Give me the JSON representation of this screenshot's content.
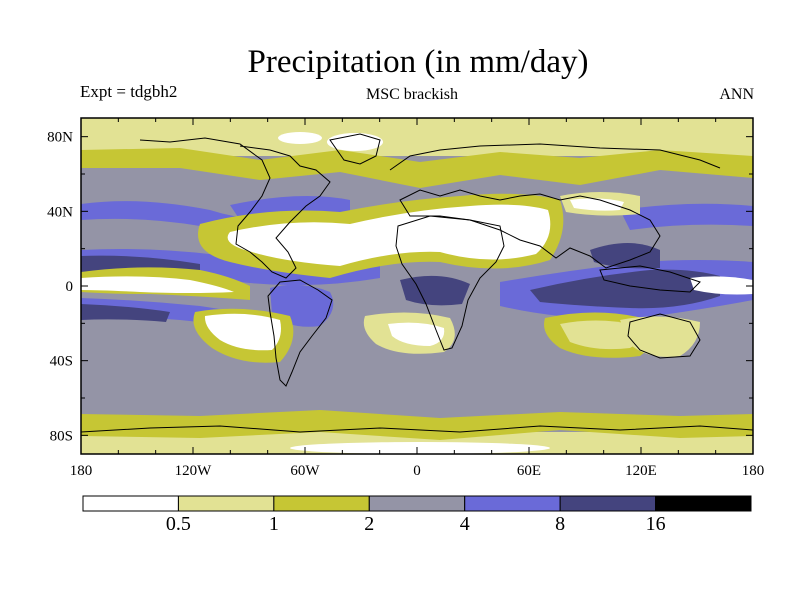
{
  "title": "Precipitation (in mm/day)",
  "left_label": "Expt = tdgbh2",
  "center_label": "MSC brackish",
  "right_label": "ANN",
  "map": {
    "projection": "equirectangular",
    "lon_range": [
      -180,
      180
    ],
    "lat_range": [
      -90,
      90
    ],
    "lat_ticks": [
      {
        "value": 80,
        "label": "80N"
      },
      {
        "value": 40,
        "label": "40N"
      },
      {
        "value": 0,
        "label": "0"
      },
      {
        "value": -40,
        "label": "40S"
      },
      {
        "value": -80,
        "label": "80S"
      }
    ],
    "lon_ticks": [
      {
        "value": -180,
        "label": "180"
      },
      {
        "value": -120,
        "label": "120W"
      },
      {
        "value": -60,
        "label": "60W"
      },
      {
        "value": 0,
        "label": "0"
      },
      {
        "value": 60,
        "label": "60E"
      },
      {
        "value": 120,
        "label": "120E"
      },
      {
        "value": 180,
        "label": "180"
      }
    ]
  },
  "colorbar": {
    "colors": [
      "#ffffff",
      "#e2e294",
      "#c6c634",
      "#9494a6",
      "#6a6ad8",
      "#44447e",
      "#000000"
    ],
    "boundaries": [
      "0.5",
      "1",
      "2",
      "4",
      "8",
      "16"
    ]
  },
  "chart_data": {
    "type": "heatmap",
    "title": "Precipitation (in mm/day)",
    "levels": [
      0.5,
      1,
      2,
      4,
      8,
      16
    ],
    "xlim": [
      -180,
      180
    ],
    "ylim": [
      -90,
      90
    ],
    "categories": [
      "<0.5",
      "0.5-1",
      "1-2",
      "2-4",
      "4-8",
      "8-16",
      ">16"
    ]
  }
}
